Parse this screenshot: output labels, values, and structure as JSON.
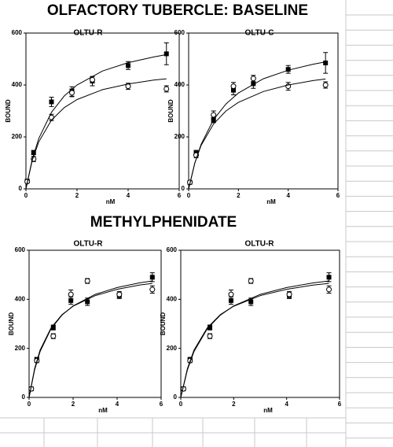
{
  "headings": [
    "OLFACTORY TUBERCLE: BASELINE",
    "METHYLPHENIDATE"
  ],
  "chart_data": [
    {
      "type": "scatter",
      "title": "OLTU-R",
      "x_label": "nM",
      "y_label": "BOUND",
      "xlim": [
        0,
        6
      ],
      "ylim": [
        0,
        600
      ],
      "xticks": [
        0,
        2,
        4,
        6
      ],
      "yticks": [
        0,
        200,
        400,
        600
      ],
      "series": [
        {
          "marker": "square",
          "color": "#000000",
          "x": [
            0.05,
            0.3,
            1,
            1.8,
            2.6,
            4,
            5.5
          ],
          "values": [
            30,
            140,
            335,
            375,
            415,
            475,
            520
          ],
          "errors": [
            4,
            8,
            18,
            18,
            18,
            15,
            42
          ]
        },
        {
          "marker": "circle",
          "color": "#000000",
          "x": [
            0.05,
            0.3,
            1,
            1.8,
            2.6,
            4,
            5.5
          ],
          "values": [
            28,
            115,
            275,
            370,
            420,
            395,
            385
          ],
          "errors": [
            4,
            10,
            12,
            15,
            12,
            12,
            12
          ]
        },
        {
          "marker": "line",
          "color": "#000000",
          "x": [
            0,
            0.25,
            0.5,
            1,
            1.5,
            2,
            3,
            4,
            5,
            5.5
          ],
          "values": [
            0,
            115,
            194,
            295,
            358,
            400,
            454,
            486,
            508,
            517
          ]
        },
        {
          "marker": "line",
          "color": "#000000",
          "x": [
            0,
            0.25,
            0.5,
            1,
            1.5,
            2,
            3,
            4,
            5,
            5.5
          ],
          "values": [
            0,
            111,
            181,
            265,
            313,
            344,
            382,
            404,
            419,
            424
          ]
        }
      ]
    },
    {
      "type": "scatter",
      "title": "OLTU-C",
      "x_label": "nM",
      "y_label": "BOUND",
      "xlim": [
        0,
        6
      ],
      "ylim": [
        0,
        600
      ],
      "xticks": [
        0,
        2,
        4,
        6
      ],
      "yticks": [
        0,
        200,
        400,
        600
      ],
      "series": [
        {
          "marker": "square",
          "color": "#000000",
          "x": [
            0.05,
            0.3,
            1,
            1.8,
            2.6,
            4,
            5.5
          ],
          "values": [
            25,
            140,
            265,
            380,
            405,
            460,
            485
          ],
          "errors": [
            4,
            8,
            10,
            18,
            18,
            15,
            40
          ]
        },
        {
          "marker": "circle",
          "color": "#000000",
          "x": [
            0.05,
            0.3,
            1,
            1.8,
            2.6,
            4,
            5.5
          ],
          "values": [
            25,
            130,
            285,
            395,
            425,
            395,
            400
          ],
          "errors": [
            4,
            10,
            15,
            15,
            12,
            15,
            12
          ]
        },
        {
          "marker": "line",
          "color": "#000000",
          "x": [
            0,
            0.25,
            0.5,
            1,
            1.5,
            2,
            3,
            4,
            5,
            5.5
          ],
          "values": [
            0,
            100,
            171,
            267,
            327,
            369,
            424,
            457,
            480,
            489
          ]
        },
        {
          "marker": "line",
          "color": "#000000",
          "x": [
            0,
            0.25,
            0.5,
            1,
            1.5,
            2,
            3,
            4,
            5,
            5.5
          ],
          "values": [
            0,
            100,
            167,
            250,
            300,
            333,
            375,
            400,
            417,
            423
          ]
        }
      ]
    },
    {
      "type": "scatter",
      "title": "OLTU-R",
      "x_label": "nM",
      "y_label": "BOUND",
      "xlim": [
        0,
        6
      ],
      "ylim": [
        0,
        600
      ],
      "xticks": [
        0,
        2,
        4,
        6
      ],
      "yticks": [
        0,
        200,
        400,
        600
      ],
      "series": [
        {
          "marker": "square",
          "color": "#000000",
          "x": [
            0.1,
            0.35,
            1.1,
            1.9,
            2.65,
            4.1,
            5.6
          ],
          "values": [
            35,
            155,
            285,
            395,
            390,
            415,
            490
          ],
          "errors": [
            4,
            8,
            10,
            15,
            15,
            12,
            18
          ]
        },
        {
          "marker": "circle",
          "color": "#000000",
          "x": [
            0.1,
            0.35,
            1.1,
            1.9,
            2.65,
            4.1,
            5.6
          ],
          "values": [
            35,
            150,
            250,
            420,
            475,
            420,
            440
          ],
          "errors": [
            4,
            8,
            10,
            18,
            10,
            12,
            15
          ]
        },
        {
          "marker": "line",
          "color": "#000000",
          "x": [
            0,
            0.25,
            0.5,
            1,
            1.5,
            2,
            3,
            4,
            5,
            5.6
          ],
          "values": [
            0,
            112,
            187,
            280,
            336,
            373,
            420,
            448,
            467,
            475
          ]
        },
        {
          "marker": "line",
          "color": "#000000",
          "x": [
            0,
            0.25,
            0.5,
            1,
            1.5,
            2,
            3,
            4,
            5,
            5.6
          ],
          "values": [
            0,
            117,
            193,
            284,
            338,
            372,
            415,
            441,
            458,
            465
          ]
        }
      ]
    },
    {
      "type": "scatter",
      "title": "OLTU-R",
      "x_label": "nM",
      "y_label": "BOUND",
      "xlim": [
        0,
        6
      ],
      "ylim": [
        0,
        600
      ],
      "xticks": [
        0,
        2,
        4,
        6
      ],
      "yticks": [
        0,
        200,
        400,
        600
      ],
      "series": [
        {
          "marker": "square",
          "color": "#000000",
          "x": [
            0.1,
            0.35,
            1.1,
            1.9,
            2.65,
            4.1,
            5.6
          ],
          "values": [
            35,
            155,
            285,
            395,
            390,
            415,
            490
          ],
          "errors": [
            4,
            8,
            10,
            15,
            15,
            12,
            18
          ]
        },
        {
          "marker": "circle",
          "color": "#000000",
          "x": [
            0.1,
            0.35,
            1.1,
            1.9,
            2.65,
            4.1,
            5.6
          ],
          "values": [
            35,
            150,
            250,
            420,
            475,
            420,
            440
          ],
          "errors": [
            4,
            8,
            10,
            18,
            10,
            12,
            15
          ]
        },
        {
          "marker": "line",
          "color": "#000000",
          "x": [
            0,
            0.25,
            0.5,
            1,
            1.5,
            2,
            3,
            4,
            5,
            5.6
          ],
          "values": [
            0,
            112,
            187,
            280,
            336,
            373,
            420,
            448,
            467,
            475
          ]
        },
        {
          "marker": "line",
          "color": "#000000",
          "x": [
            0,
            0.25,
            0.5,
            1,
            1.5,
            2,
            3,
            4,
            5,
            5.6
          ],
          "values": [
            0,
            117,
            193,
            284,
            338,
            372,
            415,
            441,
            458,
            465
          ]
        }
      ]
    }
  ]
}
